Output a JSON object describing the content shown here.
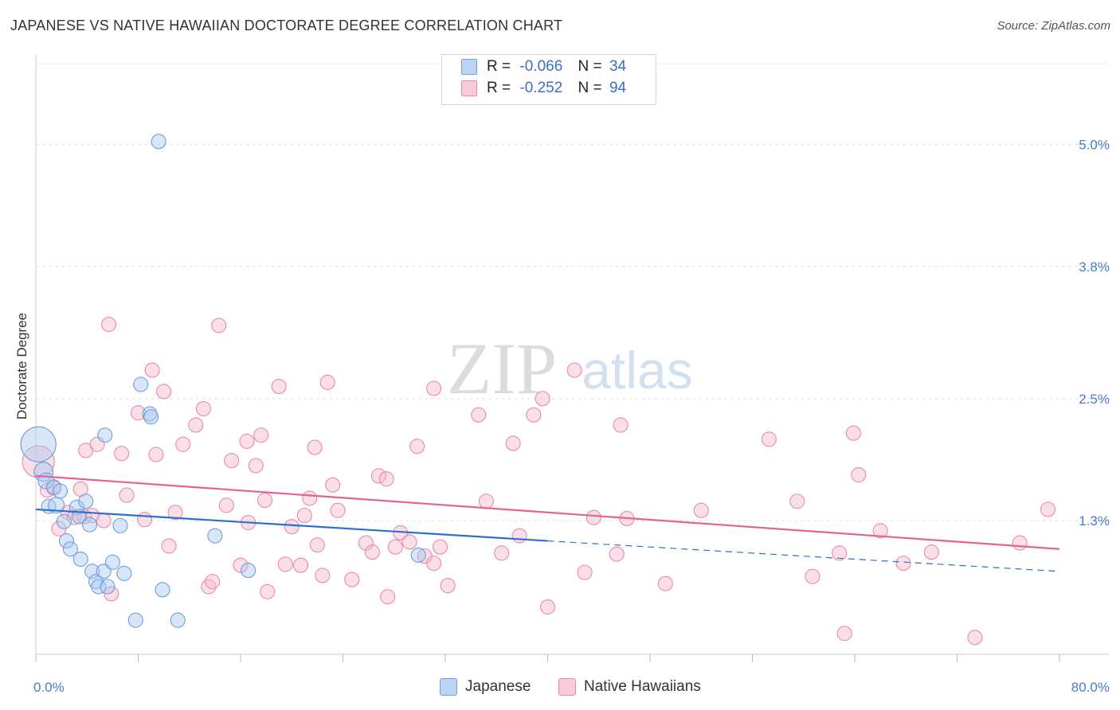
{
  "header": {
    "title": "JAPANESE VS NATIVE HAWAIIAN DOCTORATE DEGREE CORRELATION CHART",
    "source": "Source: ZipAtlas.com"
  },
  "watermark": {
    "zip": "ZIP",
    "atlas": "atlas"
  },
  "legend": {
    "series": [
      {
        "name": "Japanese",
        "r_label": "R =",
        "r_value": "-0.066",
        "n_label": "N =",
        "n_value": "34",
        "color": "#a8c8f0",
        "border": "#6b9ee0"
      },
      {
        "name": "Native Hawaiians",
        "r_label": "R =",
        "r_value": "-0.252",
        "n_label": "N =",
        "n_value": "94",
        "color": "#f7b8cb",
        "border": "#e88aa8"
      }
    ]
  },
  "chart_data": {
    "type": "scatter",
    "title": "JAPANESE VS NATIVE HAWAIIAN DOCTORATE DEGREE CORRELATION CHART",
    "xlabel": "",
    "ylabel": "Doctorate Degree",
    "xlim": [
      0,
      80
    ],
    "ylim": [
      0,
      5.2
    ],
    "x_ticks": [
      0,
      8,
      16,
      24,
      32,
      40,
      48,
      56,
      64,
      72,
      80
    ],
    "x_tick_labels": {
      "0": "0.0%",
      "80": "80.0%"
    },
    "y_ticks": [
      1.3,
      2.5,
      3.8,
      5.0
    ],
    "y_tick_labels": [
      "1.3%",
      "2.5%",
      "3.8%",
      "5.0%"
    ],
    "grid": true,
    "series": [
      {
        "name": "Japanese",
        "color": "#6b9ee0",
        "fill": "#a8c8f0",
        "trend": {
          "x": [
            0,
            40
          ],
          "y": [
            1.41,
            1.1
          ],
          "dashed_to": [
            80,
            0.8
          ],
          "color": "#2d6fcc"
        },
        "points": [
          [
            0.2,
            2.05,
            22
          ],
          [
            0.6,
            1.78,
            12
          ],
          [
            0.8,
            1.69,
            10
          ],
          [
            1.0,
            1.44,
            9
          ],
          [
            1.4,
            1.63,
            9
          ],
          [
            1.6,
            1.45,
            10
          ],
          [
            1.9,
            1.59,
            9
          ],
          [
            2.2,
            1.29,
            9
          ],
          [
            2.4,
            1.1,
            9
          ],
          [
            2.7,
            1.02,
            9
          ],
          [
            3.2,
            1.43,
            9
          ],
          [
            3.4,
            1.34,
            9
          ],
          [
            3.5,
            0.92,
            9
          ],
          [
            3.9,
            1.49,
            9
          ],
          [
            4.2,
            1.26,
            9
          ],
          [
            4.4,
            0.8,
            9
          ],
          [
            4.7,
            0.7,
            9
          ],
          [
            4.9,
            0.65,
            9
          ],
          [
            5.3,
            0.8,
            9
          ],
          [
            5.6,
            0.65,
            9
          ],
          [
            6.0,
            0.89,
            9
          ],
          [
            6.6,
            1.25,
            9
          ],
          [
            6.9,
            0.78,
            9
          ],
          [
            7.8,
            0.32,
            9
          ],
          [
            8.2,
            2.64,
            9
          ],
          [
            8.9,
            2.35,
            9
          ],
          [
            9.0,
            2.32,
            9
          ],
          [
            9.6,
            5.03,
            9
          ],
          [
            9.9,
            0.62,
            9
          ],
          [
            11.1,
            0.32,
            9
          ],
          [
            14.0,
            1.15,
            9
          ],
          [
            16.6,
            0.81,
            9
          ],
          [
            5.4,
            2.14,
            9
          ],
          [
            29.9,
            0.96,
            9
          ]
        ]
      },
      {
        "name": "Native Hawaiians",
        "color": "#e88aa8",
        "fill": "#f7b8cb",
        "trend": {
          "x": [
            0,
            80
          ],
          "y": [
            1.74,
            1.02
          ],
          "color": "#e06590"
        },
        "points": [
          [
            0.2,
            1.88,
            20
          ],
          [
            0.9,
            1.6,
            9
          ],
          [
            1.4,
            1.62,
            9
          ],
          [
            1.8,
            1.22,
            9
          ],
          [
            2.5,
            1.38,
            9
          ],
          [
            3.0,
            1.33,
            9
          ],
          [
            3.5,
            1.61,
            9
          ],
          [
            3.8,
            1.34,
            9
          ],
          [
            3.9,
            1.99,
            9
          ],
          [
            4.4,
            1.35,
            9
          ],
          [
            4.8,
            2.05,
            9
          ],
          [
            5.3,
            1.3,
            9
          ],
          [
            5.9,
            0.58,
            9
          ],
          [
            5.7,
            3.23,
            9
          ],
          [
            6.7,
            1.96,
            9
          ],
          [
            7.1,
            1.55,
            9
          ],
          [
            8.0,
            2.36,
            9
          ],
          [
            8.5,
            1.31,
            9
          ],
          [
            9.1,
            2.78,
            9
          ],
          [
            9.4,
            1.95,
            9
          ],
          [
            10.0,
            2.57,
            9
          ],
          [
            10.4,
            1.05,
            9
          ],
          [
            10.9,
            1.38,
            9
          ],
          [
            11.5,
            2.05,
            9
          ],
          [
            12.5,
            2.24,
            9
          ],
          [
            13.1,
            2.4,
            9
          ],
          [
            13.5,
            0.65,
            9
          ],
          [
            13.8,
            0.7,
            9
          ],
          [
            14.3,
            3.22,
            9
          ],
          [
            14.9,
            1.45,
            9
          ],
          [
            15.3,
            1.89,
            9
          ],
          [
            16.0,
            0.86,
            9
          ],
          [
            16.5,
            2.08,
            9
          ],
          [
            16.6,
            1.28,
            9
          ],
          [
            17.2,
            1.84,
            9
          ],
          [
            17.6,
            2.14,
            9
          ],
          [
            17.9,
            1.5,
            9
          ],
          [
            18.1,
            0.6,
            9
          ],
          [
            19.0,
            2.62,
            9
          ],
          [
            19.5,
            0.87,
            9
          ],
          [
            20.0,
            1.24,
            9
          ],
          [
            20.7,
            0.86,
            9
          ],
          [
            21.0,
            1.35,
            9
          ],
          [
            21.4,
            1.52,
            9
          ],
          [
            21.8,
            2.02,
            9
          ],
          [
            22.0,
            1.06,
            9
          ],
          [
            22.8,
            2.66,
            9
          ],
          [
            22.4,
            0.76,
            9
          ],
          [
            23.2,
            1.65,
            9
          ],
          [
            23.6,
            1.4,
            9
          ],
          [
            24.7,
            0.72,
            9
          ],
          [
            25.8,
            1.08,
            9
          ],
          [
            26.3,
            0.99,
            9
          ],
          [
            26.8,
            1.74,
            9
          ],
          [
            27.4,
            1.71,
            9
          ],
          [
            27.5,
            0.55,
            9
          ],
          [
            28.1,
            1.04,
            9
          ],
          [
            28.5,
            1.18,
            9
          ],
          [
            29.2,
            1.09,
            9
          ],
          [
            29.8,
            2.03,
            9
          ],
          [
            30.4,
            0.95,
            9
          ],
          [
            31.1,
            0.88,
            9
          ],
          [
            31.1,
            2.6,
            9
          ],
          [
            31.6,
            1.04,
            9
          ],
          [
            32.2,
            0.66,
            9
          ],
          [
            34.6,
            2.34,
            9
          ],
          [
            35.2,
            1.49,
            9
          ],
          [
            36.4,
            0.98,
            9
          ],
          [
            37.3,
            2.06,
            9
          ],
          [
            37.8,
            1.15,
            9
          ],
          [
            38.9,
            2.34,
            9
          ],
          [
            39.6,
            2.5,
            9
          ],
          [
            40.0,
            0.45,
            9
          ],
          [
            42.1,
            2.78,
            9
          ],
          [
            42.9,
            0.79,
            9
          ],
          [
            43.6,
            1.33,
            9
          ],
          [
            45.4,
            0.97,
            9
          ],
          [
            45.7,
            2.24,
            9
          ],
          [
            46.2,
            1.32,
            9
          ],
          [
            49.2,
            0.68,
            9
          ],
          [
            52.0,
            1.4,
            9
          ],
          [
            57.3,
            2.1,
            9
          ],
          [
            59.5,
            1.49,
            9
          ],
          [
            60.7,
            0.75,
            9
          ],
          [
            62.8,
            0.98,
            9
          ],
          [
            63.2,
            0.19,
            9
          ],
          [
            63.9,
            2.16,
            9
          ],
          [
            64.3,
            1.75,
            9
          ],
          [
            66.0,
            1.2,
            9
          ],
          [
            67.8,
            0.88,
            9
          ],
          [
            70.0,
            0.99,
            9
          ],
          [
            73.4,
            0.15,
            9
          ],
          [
            76.9,
            1.08,
            9
          ],
          [
            79.1,
            1.41,
            9
          ]
        ]
      }
    ]
  }
}
